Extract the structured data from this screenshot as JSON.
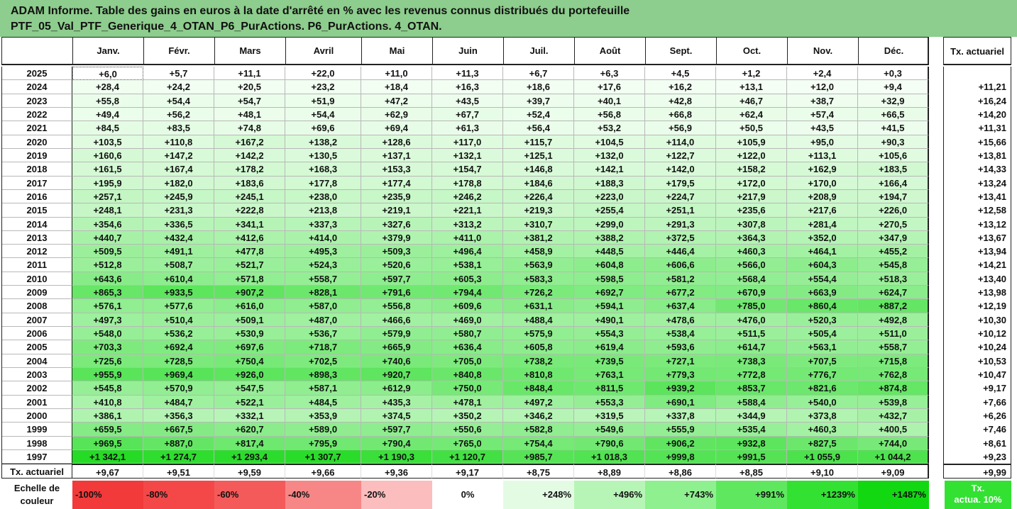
{
  "title_lines": [
    "ADAM Informe. Table des gains en euros à la date d'arrêté en % avec les revenus connus distribués du portefeuille",
    "PTF_05_Val_PTF_Generique_4_OTAN_P6_PurActions. P6_PurActions. 4_OTAN."
  ],
  "months": [
    "Janv.",
    "Févr.",
    "Mars",
    "Avril",
    "Mai",
    "Juin",
    "Juil.",
    "Août",
    "Sept.",
    "Oct.",
    "Nov.",
    "Déc."
  ],
  "tx_header": "Tx. actuariel",
  "rows": [
    {
      "year": "2025",
      "values": [
        "+6,0",
        "+5,7",
        "+11,1",
        "+22,0",
        "+11,0",
        "+11,3",
        "+6,7",
        "+6,3",
        "+4,5",
        "+1,2",
        "+2,4",
        "+0,3"
      ],
      "tx": ""
    },
    {
      "year": "2024",
      "values": [
        "+28,4",
        "+24,2",
        "+20,5",
        "+23,2",
        "+18,4",
        "+16,3",
        "+18,6",
        "+17,6",
        "+16,2",
        "+13,1",
        "+12,0",
        "+9,4"
      ],
      "tx": "+11,21"
    },
    {
      "year": "2023",
      "values": [
        "+55,8",
        "+54,4",
        "+54,7",
        "+51,9",
        "+47,2",
        "+43,5",
        "+39,7",
        "+40,1",
        "+42,8",
        "+46,7",
        "+38,7",
        "+32,9"
      ],
      "tx": "+16,24"
    },
    {
      "year": "2022",
      "values": [
        "+49,4",
        "+56,2",
        "+48,1",
        "+54,4",
        "+62,9",
        "+67,7",
        "+52,4",
        "+56,8",
        "+66,8",
        "+62,4",
        "+57,4",
        "+66,5"
      ],
      "tx": "+14,20"
    },
    {
      "year": "2021",
      "values": [
        "+84,5",
        "+83,5",
        "+74,8",
        "+69,6",
        "+69,4",
        "+61,3",
        "+56,4",
        "+53,2",
        "+56,9",
        "+50,5",
        "+43,5",
        "+41,5"
      ],
      "tx": "+11,31"
    },
    {
      "year": "2020",
      "values": [
        "+103,5",
        "+110,8",
        "+167,2",
        "+138,2",
        "+128,6",
        "+117,0",
        "+115,7",
        "+104,5",
        "+114,0",
        "+105,9",
        "+95,0",
        "+90,3"
      ],
      "tx": "+15,66"
    },
    {
      "year": "2019",
      "values": [
        "+160,6",
        "+147,2",
        "+142,2",
        "+130,5",
        "+137,1",
        "+132,1",
        "+125,1",
        "+132,0",
        "+122,7",
        "+122,0",
        "+113,1",
        "+105,6"
      ],
      "tx": "+13,81"
    },
    {
      "year": "2018",
      "values": [
        "+161,5",
        "+167,4",
        "+178,2",
        "+168,3",
        "+153,3",
        "+154,7",
        "+146,8",
        "+142,1",
        "+142,0",
        "+158,2",
        "+162,9",
        "+183,5"
      ],
      "tx": "+14,33"
    },
    {
      "year": "2017",
      "values": [
        "+195,9",
        "+182,0",
        "+183,6",
        "+177,8",
        "+177,4",
        "+178,8",
        "+184,6",
        "+188,3",
        "+179,5",
        "+172,0",
        "+170,0",
        "+166,4"
      ],
      "tx": "+13,24"
    },
    {
      "year": "2016",
      "values": [
        "+257,1",
        "+245,9",
        "+245,1",
        "+238,0",
        "+235,9",
        "+246,2",
        "+226,4",
        "+223,0",
        "+224,7",
        "+217,9",
        "+208,9",
        "+194,7"
      ],
      "tx": "+13,41"
    },
    {
      "year": "2015",
      "values": [
        "+248,1",
        "+231,3",
        "+222,8",
        "+213,8",
        "+219,1",
        "+221,1",
        "+219,3",
        "+255,4",
        "+251,1",
        "+235,6",
        "+217,6",
        "+226,0"
      ],
      "tx": "+12,58"
    },
    {
      "year": "2014",
      "values": [
        "+354,6",
        "+336,5",
        "+341,1",
        "+337,3",
        "+327,6",
        "+313,2",
        "+310,7",
        "+299,0",
        "+291,3",
        "+307,8",
        "+281,4",
        "+270,5"
      ],
      "tx": "+13,12"
    },
    {
      "year": "2013",
      "values": [
        "+440,7",
        "+432,4",
        "+412,6",
        "+414,0",
        "+379,9",
        "+411,0",
        "+381,2",
        "+388,2",
        "+372,5",
        "+364,3",
        "+352,0",
        "+347,9"
      ],
      "tx": "+13,67"
    },
    {
      "year": "2012",
      "values": [
        "+509,5",
        "+491,1",
        "+477,8",
        "+495,3",
        "+509,3",
        "+496,4",
        "+458,9",
        "+448,5",
        "+446,4",
        "+460,3",
        "+464,1",
        "+455,2"
      ],
      "tx": "+13,94"
    },
    {
      "year": "2011",
      "values": [
        "+512,8",
        "+508,7",
        "+521,7",
        "+524,3",
        "+520,6",
        "+538,1",
        "+563,9",
        "+604,8",
        "+606,6",
        "+566,0",
        "+604,3",
        "+545,8"
      ],
      "tx": "+14,21"
    },
    {
      "year": "2010",
      "values": [
        "+643,6",
        "+610,4",
        "+571,8",
        "+558,7",
        "+597,7",
        "+605,3",
        "+583,3",
        "+598,5",
        "+581,2",
        "+568,4",
        "+554,4",
        "+518,3"
      ],
      "tx": "+13,40"
    },
    {
      "year": "2009",
      "values": [
        "+865,3",
        "+933,5",
        "+907,2",
        "+828,1",
        "+791,6",
        "+794,4",
        "+726,2",
        "+692,7",
        "+677,2",
        "+670,9",
        "+663,9",
        "+624,7"
      ],
      "tx": "+13,98"
    },
    {
      "year": "2008",
      "values": [
        "+576,1",
        "+577,6",
        "+616,0",
        "+587,0",
        "+556,8",
        "+609,6",
        "+631,1",
        "+594,1",
        "+637,4",
        "+785,0",
        "+860,4",
        "+887,2"
      ],
      "tx": "+12,19"
    },
    {
      "year": "2007",
      "values": [
        "+497,3",
        "+510,4",
        "+509,1",
        "+487,0",
        "+466,6",
        "+469,0",
        "+488,4",
        "+490,1",
        "+478,6",
        "+476,0",
        "+520,3",
        "+492,8"
      ],
      "tx": "+10,30"
    },
    {
      "year": "2006",
      "values": [
        "+548,0",
        "+536,2",
        "+530,9",
        "+536,7",
        "+579,9",
        "+580,7",
        "+575,9",
        "+554,3",
        "+538,4",
        "+511,5",
        "+505,4",
        "+511,0"
      ],
      "tx": "+10,12"
    },
    {
      "year": "2005",
      "values": [
        "+703,3",
        "+692,4",
        "+697,6",
        "+718,7",
        "+665,9",
        "+636,4",
        "+605,8",
        "+619,4",
        "+593,6",
        "+614,7",
        "+563,1",
        "+558,7"
      ],
      "tx": "+10,24"
    },
    {
      "year": "2004",
      "values": [
        "+725,6",
        "+728,5",
        "+750,4",
        "+702,5",
        "+740,6",
        "+705,0",
        "+738,2",
        "+739,5",
        "+727,1",
        "+738,3",
        "+707,5",
        "+715,8"
      ],
      "tx": "+10,53"
    },
    {
      "year": "2003",
      "values": [
        "+955,9",
        "+969,4",
        "+926,0",
        "+898,3",
        "+920,7",
        "+840,8",
        "+810,8",
        "+763,1",
        "+779,3",
        "+772,8",
        "+776,7",
        "+762,8"
      ],
      "tx": "+10,47"
    },
    {
      "year": "2002",
      "values": [
        "+545,8",
        "+570,9",
        "+547,5",
        "+587,1",
        "+612,9",
        "+750,0",
        "+848,4",
        "+811,5",
        "+939,2",
        "+853,7",
        "+821,6",
        "+874,8"
      ],
      "tx": "+9,17"
    },
    {
      "year": "2001",
      "values": [
        "+410,8",
        "+484,7",
        "+522,1",
        "+484,5",
        "+435,3",
        "+478,1",
        "+497,2",
        "+553,3",
        "+690,1",
        "+588,4",
        "+540,0",
        "+539,8"
      ],
      "tx": "+7,66"
    },
    {
      "year": "2000",
      "values": [
        "+386,1",
        "+356,3",
        "+332,1",
        "+353,9",
        "+374,5",
        "+350,2",
        "+346,2",
        "+319,5",
        "+337,8",
        "+344,9",
        "+373,8",
        "+432,7"
      ],
      "tx": "+6,26"
    },
    {
      "year": "1999",
      "values": [
        "+659,5",
        "+667,5",
        "+620,7",
        "+589,0",
        "+597,7",
        "+550,6",
        "+582,8",
        "+549,6",
        "+555,9",
        "+535,4",
        "+460,3",
        "+400,5"
      ],
      "tx": "+7,46"
    },
    {
      "year": "1998",
      "values": [
        "+969,5",
        "+887,0",
        "+817,4",
        "+795,9",
        "+790,4",
        "+765,0",
        "+754,4",
        "+790,6",
        "+906,2",
        "+932,8",
        "+827,5",
        "+744,0"
      ],
      "tx": "+8,61"
    },
    {
      "year": "1997",
      "values": [
        "+1 342,1",
        "+1 274,7",
        "+1 293,4",
        "+1 307,7",
        "+1 190,3",
        "+1 120,7",
        "+985,7",
        "+1 018,3",
        "+999,8",
        "+991,5",
        "+1 055,9",
        "+1 044,2"
      ],
      "tx": "+9,23"
    }
  ],
  "footer": {
    "label": "Tx. actuariel",
    "values": [
      "+9,67",
      "+9,51",
      "+9,59",
      "+9,66",
      "+9,36",
      "+9,17",
      "+8,75",
      "+8,89",
      "+8,86",
      "+8,85",
      "+9,10",
      "+9,09"
    ],
    "tx": "+9,99"
  },
  "scale": {
    "label_line1": "Echelle de",
    "label_line2": "couleur",
    "items": [
      {
        "label": "-100%",
        "color": "#f23a3a"
      },
      {
        "label": "-80%",
        "color": "#f44848"
      },
      {
        "label": "-60%",
        "color": "#f55a5a"
      },
      {
        "label": "-40%",
        "color": "#f78787"
      },
      {
        "label": "-20%",
        "color": "#fbbdbd"
      },
      {
        "label": "0%",
        "color": "#ffffff"
      },
      {
        "label": "+248%",
        "color": "#e3fbe3"
      },
      {
        "label": "+496%",
        "color": "#b7f5b7"
      },
      {
        "label": "+743%",
        "color": "#8ef08e"
      },
      {
        "label": "+991%",
        "color": "#5fe85f"
      },
      {
        "label": "+1239%",
        "color": "#33e133"
      },
      {
        "label": "+1487%",
        "color": "#12d812"
      }
    ],
    "tx_line1": "Tx.",
    "tx_line2": "actua. 10%",
    "tx_color": "#33e133"
  },
  "colors": {
    "title_bg": "#8dcd8d",
    "grid_line": "#b8b8b8",
    "border": "#222222"
  }
}
